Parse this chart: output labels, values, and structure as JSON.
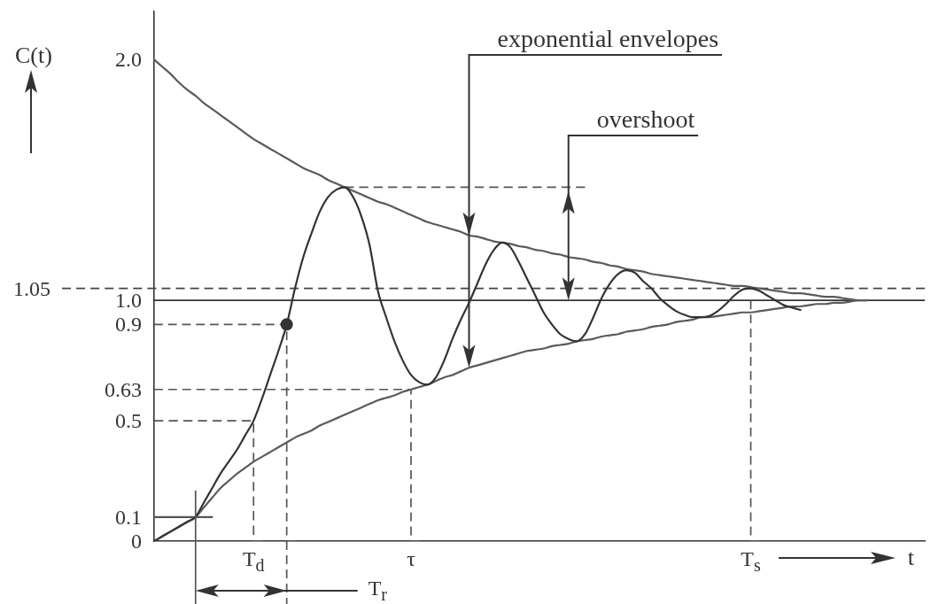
{
  "chart_data": {
    "type": "line",
    "xlabel": "t",
    "ylabel": "C(t)",
    "ylim": [
      0,
      2.2
    ],
    "categories": [
      null,
      null,
      null,
      null,
      null,
      null,
      null,
      null,
      null,
      null,
      null,
      null,
      "T$_{d}$",
      null,
      null,
      null,
      null,
      null,
      null,
      null,
      null,
      null,
      null,
      null,
      null,
      null,
      null,
      null,
      null,
      null,
      null,
      "τ",
      null,
      null,
      null,
      null,
      null,
      null,
      null,
      null,
      null,
      null,
      null,
      null,
      null,
      null,
      null,
      null,
      null,
      null,
      null,
      null,
      null,
      null,
      null,
      null,
      null,
      null,
      null,
      null,
      null,
      null,
      null,
      null,
      null,
      null,
      null,
      null,
      null,
      null,
      null,
      null,
      "T$_{s}$",
      null,
      null,
      null,
      null,
      null,
      null,
      null,
      null,
      null,
      null,
      null,
      null,
      null,
      null,
      null,
      null,
      null,
      null,
      null,
      null,
      null
    ],
    "yticks": [
      0,
      0.1,
      0.5,
      0.63,
      0.9,
      {
        "value": 1,
        "label": "1.0"
      },
      {
        "value": 2,
        "label": "2.0"
      }
    ],
    "series": [
      {
        "color": "#333333",
        "values": [
          0,
          0.02,
          0.04,
          0.06,
          0.08,
          0.1,
          0.16,
          0.22,
          0.28,
          0.33,
          0.38,
          0.44,
          0.5,
          0.59,
          0.69,
          0.79,
          0.9,
          1.05,
          1.18,
          1.28,
          1.37,
          1.43,
          1.46,
          1.47,
          1.43,
          1.35,
          1.23,
          1.04,
          0.93,
          0.83,
          0.75,
          0.69,
          0.66,
          0.65,
          0.68,
          0.75,
          0.84,
          0.92,
          0.99,
          1.07,
          1.15,
          1.21,
          1.24,
          1.22,
          1.16,
          1.09,
          1.02,
          0.95,
          0.9,
          0.86,
          0.84,
          0.83,
          0.86,
          0.93,
          1.01,
          1.07,
          1.11,
          1.125,
          1.115,
          1.08,
          1.05,
          1.01,
          0.98,
          0.955,
          0.94,
          0.93,
          0.93,
          0.935,
          0.955,
          0.985,
          1.02,
          1.045,
          1.05,
          1.04,
          1.02,
          1.0,
          0.98,
          0.97,
          0.96,
          null,
          null,
          null,
          null,
          null,
          null,
          null,
          null,
          null,
          null,
          null,
          null,
          null,
          null,
          null
        ]
      },
      {
        "color": "#5a5a5a",
        "values": [
          2.0,
          1.97,
          1.94,
          1.905,
          1.875,
          1.85,
          1.82,
          1.795,
          1.77,
          1.745,
          1.72,
          1.695,
          1.67,
          1.65,
          1.63,
          1.61,
          1.59,
          1.57,
          1.55,
          1.535,
          1.52,
          1.5,
          1.485,
          1.47,
          1.455,
          1.44,
          1.425,
          1.41,
          1.4,
          1.385,
          1.37,
          1.355,
          1.34,
          1.325,
          1.315,
          1.305,
          1.295,
          1.285,
          1.27,
          1.265,
          1.255,
          1.245,
          1.24,
          1.235,
          1.225,
          1.22,
          1.21,
          1.205,
          1.195,
          1.19,
          1.18,
          1.175,
          1.17,
          1.16,
          1.155,
          1.145,
          1.14,
          1.13,
          1.125,
          1.12,
          1.11,
          1.105,
          1.1,
          1.095,
          1.09,
          1.085,
          1.08,
          1.075,
          1.07,
          1.065,
          1.06,
          1.06,
          1.055,
          1.05,
          1.045,
          1.04,
          1.035,
          1.03,
          1.03,
          1.025,
          1.02,
          1.015,
          1.015,
          1.01,
          1.005,
          1.0,
          1.0,
          null,
          null,
          null,
          null,
          null,
          null,
          null
        ]
      },
      {
        "color": "#5a5a5a",
        "values": [
          0,
          0.02,
          0.04,
          0.06,
          0.08,
          0.1,
          0.14,
          0.18,
          0.22,
          0.25,
          0.28,
          0.305,
          0.33,
          0.35,
          0.37,
          0.39,
          0.41,
          0.43,
          0.445,
          0.46,
          0.48,
          0.495,
          0.51,
          0.525,
          0.54,
          0.555,
          0.57,
          0.585,
          0.595,
          0.605,
          0.62,
          0.63,
          0.64,
          0.65,
          0.665,
          0.68,
          0.69,
          0.705,
          0.72,
          0.73,
          0.74,
          0.75,
          0.76,
          0.77,
          0.78,
          0.79,
          0.795,
          0.8,
          0.81,
          0.815,
          0.82,
          0.83,
          0.835,
          0.84,
          0.85,
          0.855,
          0.86,
          0.87,
          0.875,
          0.88,
          0.89,
          0.895,
          0.9,
          0.91,
          0.915,
          0.92,
          0.93,
          0.93,
          0.935,
          0.94,
          0.945,
          0.95,
          0.95,
          0.955,
          0.96,
          0.965,
          0.97,
          0.975,
          0.975,
          0.98,
          0.985,
          0.985,
          0.99,
          0.99,
          0.995,
          1.0,
          1.0,
          null,
          null,
          null,
          null,
          null,
          null,
          null
        ]
      },
      {
        "type": "scatter",
        "color": "#333333",
        "marker": "circle",
        "values": [
          null,
          null,
          null,
          null,
          null,
          null,
          null,
          null,
          null,
          null,
          null,
          null,
          null,
          null,
          null,
          null,
          0.9,
          null,
          null,
          null,
          null,
          null,
          null,
          null,
          null,
          null,
          null,
          null,
          null,
          null,
          null,
          null,
          null,
          null,
          null,
          null,
          null,
          null,
          null,
          null,
          null,
          null,
          null,
          null,
          null,
          null,
          null,
          null,
          null,
          null,
          null,
          null,
          null,
          null,
          null,
          null,
          null,
          null,
          null,
          null,
          null,
          null,
          null,
          null,
          null,
          null,
          null,
          null,
          null,
          null,
          null,
          null,
          null,
          null,
          null,
          null,
          null,
          null,
          null,
          null,
          null,
          null,
          null,
          null,
          null,
          null,
          null,
          null,
          null,
          null,
          null,
          null,
          null,
          null
        ]
      },
      {
        "color": "#555555",
        "values": [
          0.1,
          0.1,
          0.1,
          0.1,
          0.1,
          0.1,
          0.1,
          0.1,
          null,
          null,
          null,
          null,
          null,
          null,
          null,
          null,
          null,
          null,
          null,
          null,
          null,
          null,
          null,
          null,
          null,
          null,
          null,
          null,
          null,
          null,
          null,
          null,
          null,
          null,
          null,
          null,
          null,
          null,
          null,
          null,
          null,
          null,
          null,
          null,
          null,
          null,
          null,
          null,
          null,
          null,
          null,
          null,
          null,
          null,
          null,
          null,
          null,
          null,
          null,
          null,
          null,
          null,
          null,
          null,
          null,
          null,
          null,
          null,
          null,
          null,
          null,
          null,
          null,
          null,
          null,
          null,
          null,
          null,
          null,
          null,
          null,
          null,
          null,
          null,
          null,
          null,
          null,
          null,
          null,
          null,
          null,
          null,
          null,
          null
        ]
      },
      {
        "type": "step",
        "color": "#555555",
        "line_style": "dashed",
        "values": [
          0.5,
          0.5,
          0.5,
          0.5,
          0.5,
          0.5,
          0.5,
          0.5,
          0.5,
          0.5,
          0.5,
          0.5,
          0.5,
          0,
          null,
          null,
          null,
          null,
          null,
          null,
          null,
          null,
          null,
          null,
          null,
          null,
          null,
          null,
          null,
          null,
          null,
          null,
          null,
          null,
          null,
          null,
          null,
          null,
          null,
          null,
          null,
          null,
          null,
          null,
          null,
          null,
          null,
          null,
          null,
          null,
          null,
          null,
          null,
          null,
          null,
          null,
          null,
          null,
          null,
          null,
          null,
          null,
          null,
          null,
          null,
          null,
          null,
          null,
          null,
          null,
          null,
          null,
          null,
          null,
          null,
          null,
          null,
          null,
          null,
          null,
          null,
          null,
          null,
          null,
          null,
          null,
          null,
          null,
          null,
          null,
          null,
          null,
          null,
          null
        ]
      },
      {
        "type": "step",
        "color": "#555555",
        "line_style": "dashed",
        "values": [
          0.9,
          0.9,
          0.9,
          0.9,
          0.9,
          0.9,
          0.9,
          0.9,
          0.9,
          0.9,
          0.9,
          0.9,
          0.9,
          0.9,
          0.9,
          0.9,
          0.9,
          0,
          null,
          null,
          null,
          null,
          null,
          null,
          null,
          null,
          null,
          null,
          null,
          null,
          null,
          null,
          null,
          null,
          null,
          null,
          null,
          null,
          null,
          null,
          null,
          null,
          null,
          null,
          null,
          null,
          null,
          null,
          null,
          null,
          null,
          null,
          null,
          null,
          null,
          null,
          null,
          null,
          null,
          null,
          null,
          null,
          null,
          null,
          null,
          null,
          null,
          null,
          null,
          null,
          null,
          null,
          null,
          null,
          null,
          null,
          null,
          null,
          null,
          null,
          null,
          null,
          null,
          null,
          null,
          null,
          null,
          null,
          null,
          null,
          null,
          null,
          null,
          null
        ]
      },
      {
        "type": "step",
        "color": "#555555",
        "line_style": "dashed",
        "values": [
          0.63,
          0.63,
          0.63,
          0.63,
          0.63,
          0.63,
          0.63,
          0.63,
          0.63,
          0.63,
          0.63,
          0.63,
          0.63,
          0.63,
          0.63,
          0.63,
          0.63,
          0.63,
          0.63,
          0.63,
          0.63,
          0.63,
          0.63,
          0.63,
          0.63,
          0.63,
          0.63,
          0.63,
          0.63,
          0.63,
          0.63,
          0.63,
          0,
          null,
          null,
          null,
          null,
          null,
          null,
          null,
          null,
          null,
          null,
          null,
          null,
          null,
          null,
          null,
          null,
          null,
          null,
          null,
          null,
          null,
          null,
          null,
          null,
          null,
          null,
          null,
          null,
          null,
          null,
          null,
          null,
          null,
          null,
          null,
          null,
          null,
          null,
          null,
          null,
          null,
          null,
          null,
          null,
          null,
          null,
          null,
          null,
          null,
          null,
          null,
          null,
          null,
          null,
          null,
          null,
          null,
          null,
          null,
          null,
          null
        ]
      },
      {
        "color": "#555555",
        "line_style": "dashed",
        "values": [
          null,
          null,
          null,
          null,
          null,
          null,
          null,
          null,
          null,
          null,
          null,
          null,
          null,
          null,
          null,
          null,
          null,
          null,
          null,
          null,
          null,
          null,
          null,
          1.47,
          1.47,
          1.47,
          1.47,
          1.47,
          1.47,
          1.47,
          1.47,
          1.47,
          1.47,
          1.47,
          1.47,
          1.47,
          1.47,
          1.47,
          1.47,
          1.47,
          1.47,
          1.47,
          1.47,
          1.47,
          1.47,
          1.47,
          1.47,
          1.47,
          1.47,
          1.47,
          1.47,
          1.47,
          1.47,
          null,
          null,
          null,
          null,
          null,
          null,
          null,
          null,
          null,
          null,
          null,
          null,
          null,
          null,
          null,
          null,
          null,
          null,
          null,
          null,
          null,
          null,
          null,
          null,
          null,
          null,
          null,
          null,
          null,
          null,
          null,
          null,
          null,
          null,
          null,
          null,
          null,
          null,
          null,
          null,
          null
        ]
      },
      {
        "type": "step",
        "color": "#555555",
        "line_style": "dashed",
        "values": [
          null,
          null,
          null,
          null,
          null,
          null,
          null,
          null,
          null,
          null,
          null,
          null,
          null,
          null,
          null,
          null,
          null,
          null,
          null,
          null,
          null,
          null,
          null,
          null,
          null,
          null,
          null,
          null,
          null,
          null,
          null,
          null,
          null,
          null,
          null,
          null,
          null,
          null,
          null,
          null,
          null,
          null,
          null,
          null,
          null,
          null,
          null,
          null,
          null,
          null,
          null,
          null,
          null,
          null,
          null,
          null,
          null,
          null,
          null,
          null,
          null,
          null,
          null,
          null,
          null,
          null,
          null,
          null,
          null,
          null,
          null,
          null,
          1.0,
          0,
          null,
          null,
          null,
          null,
          null,
          null,
          null,
          null,
          null,
          null,
          null,
          null,
          null,
          null,
          null,
          null,
          null,
          null,
          null,
          null
        ]
      }
    ],
    "ref_lines": [
      {
        "axis": "y",
        "value": 1,
        "line_style": "solid",
        "color": "#333333"
      },
      {
        "axis": "y",
        "value": 1.05,
        "label": "1.05",
        "line_style": "dashed",
        "color": "#444444"
      }
    ],
    "annotations": [
      "exponential envelopes",
      "overshoot",
      "T$_{r}$"
    ]
  }
}
